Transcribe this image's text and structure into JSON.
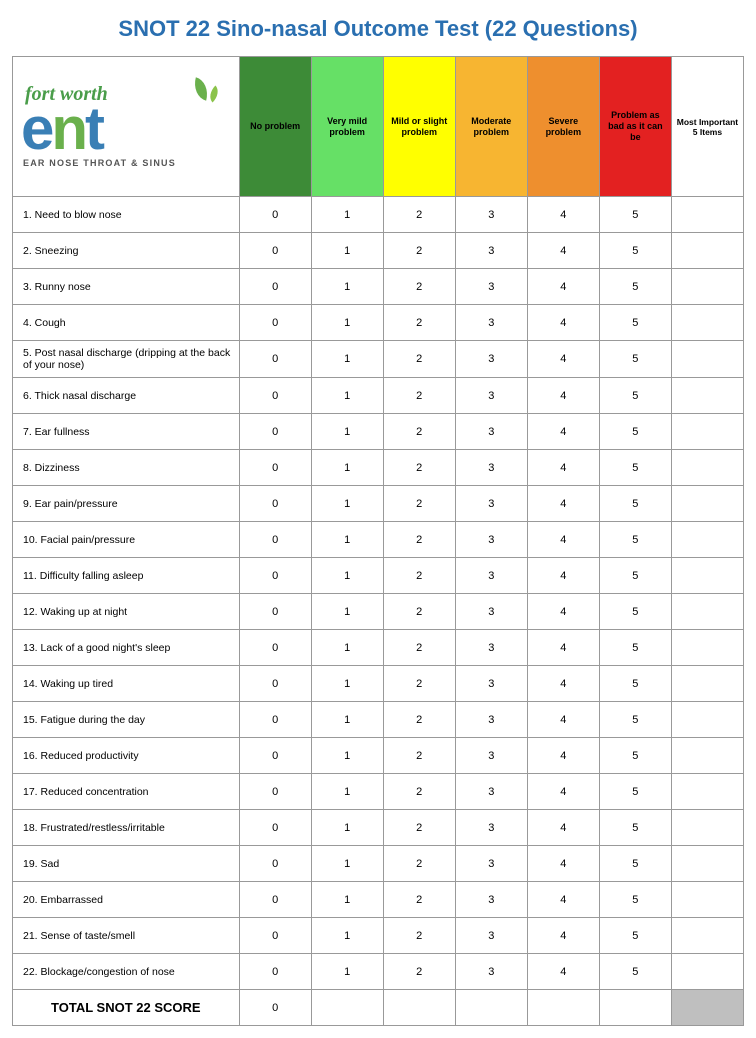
{
  "title": "SNOT 22 Sino-nasal Outcome Test (22 Questions)",
  "title_color": "#2a6fb0",
  "logo": {
    "line1": "fort worth",
    "line2": "ent",
    "sub": "EAR NOSE THROAT & SINUS"
  },
  "headers": [
    {
      "label": "No problem",
      "bg": "#3d8b37",
      "fg": "#000000"
    },
    {
      "label": "Very mild problem",
      "bg": "#66e066",
      "fg": "#000000"
    },
    {
      "label": "Mild or slight problem",
      "bg": "#ffff00",
      "fg": "#000000"
    },
    {
      "label": "Moderate problem",
      "bg": "#f7b531",
      "fg": "#000000"
    },
    {
      "label": "Severe problem",
      "bg": "#ee8f2e",
      "fg": "#000000"
    },
    {
      "label": "Problem as bad as it can be",
      "bg": "#e32121",
      "fg": "#000000"
    }
  ],
  "last_header": "Most Important 5 Items",
  "scores": [
    "0",
    "1",
    "2",
    "3",
    "4",
    "5"
  ],
  "questions": [
    "1.    Need to blow nose",
    "2.    Sneezing",
    "3.    Runny nose",
    "4.    Cough",
    "5.   Post nasal discharge (dripping at  the back of your nose)",
    "6.    Thick nasal discharge",
    "7.    Ear fullness",
    "8.    Dizziness",
    "9.    Ear pain/pressure",
    "10.  Facial pain/pressure",
    "11.  Difficulty falling asleep",
    "12.  Waking up at night",
    "13.  Lack of a good night's sleep",
    "14.  Waking up tired",
    "15.  Fatigue during the day",
    "16.  Reduced productivity",
    "17.  Reduced concentration",
    "18.  Frustrated/restless/irritable",
    "19.  Sad",
    "20.  Embarrassed",
    "21.  Sense of taste/smell",
    "22.  Blockage/congestion of nose"
  ],
  "total_label": "TOTAL SNOT 22 SCORE",
  "total_value": "0",
  "border_color": "#999999",
  "grey_fill": "#bfbfbf"
}
